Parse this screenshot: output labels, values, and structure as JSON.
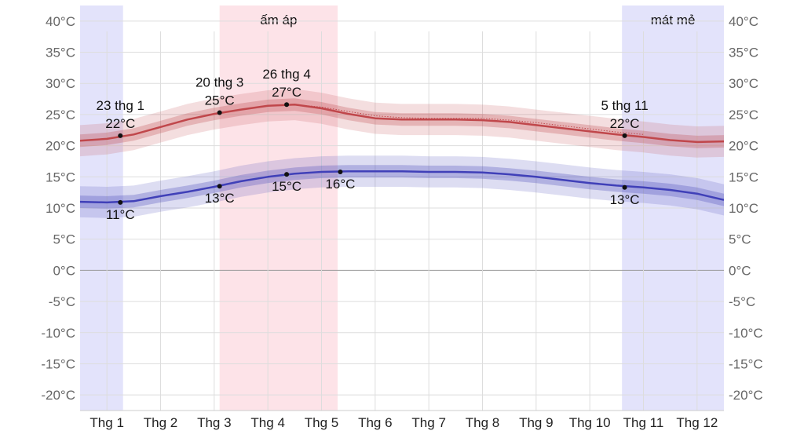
{
  "chart_data": {
    "type": "line",
    "y_unit_suffix": "°C",
    "ylim": [
      -22.5,
      42.5
    ],
    "yticks": [
      -20,
      -15,
      -10,
      -5,
      0,
      5,
      10,
      15,
      20,
      25,
      30,
      35,
      40
    ],
    "ytick_labels": [
      "-20°C",
      "-15°C",
      "-10°C",
      "-5°C",
      "0°C",
      "5°C",
      "10°C",
      "15°C",
      "20°C",
      "25°C",
      "30°C",
      "35°C",
      "40°C"
    ],
    "xlim": [
      0,
      12
    ],
    "categories": [
      "Thg 1",
      "Thg 2",
      "Thg 3",
      "Thg 4",
      "Thg 5",
      "Thg 6",
      "Thg 7",
      "Thg 8",
      "Thg 9",
      "Thg 10",
      "Thg 11",
      "Thg 12"
    ],
    "seasons": [
      {
        "label": "",
        "start": 0,
        "end": 0.8,
        "color": "#e3e3fb"
      },
      {
        "label": "ấm áp",
        "start": 2.6,
        "end": 4.8,
        "color": "#fde3e8"
      },
      {
        "label": "mát mẻ",
        "start": 10.1,
        "end": 12,
        "color": "#e3e3fb"
      }
    ],
    "series": [
      {
        "name": "",
        "color": "#c0474b",
        "x": [
          0,
          0.5,
          1,
          1.5,
          2,
          2.5,
          3,
          3.5,
          4,
          4.5,
          5,
          5.5,
          6,
          6.5,
          7,
          7.5,
          8,
          8.5,
          9,
          9.5,
          10,
          10.5,
          11,
          11.5,
          12
        ],
        "values": [
          20.8,
          21.1,
          21.8,
          23.0,
          24.2,
          25.1,
          25.8,
          26.4,
          26.6,
          26.0,
          25.1,
          24.4,
          24.2,
          24.2,
          24.2,
          24.1,
          23.8,
          23.3,
          22.8,
          22.3,
          21.8,
          21.4,
          20.9,
          20.6,
          20.7
        ],
        "band_inner": 1.0,
        "band_outer": 2.5
      },
      {
        "name": "",
        "color": "#4040b8",
        "x": [
          0,
          0.5,
          1,
          1.5,
          2,
          2.5,
          3,
          3.5,
          4,
          4.5,
          5,
          5.5,
          6,
          6.5,
          7,
          7.5,
          8,
          8.5,
          9,
          9.5,
          10,
          10.5,
          11,
          11.5,
          12
        ],
        "values": [
          11.0,
          10.9,
          11.1,
          11.9,
          12.6,
          13.4,
          14.3,
          15.0,
          15.5,
          15.8,
          15.9,
          15.9,
          15.9,
          15.8,
          15.8,
          15.7,
          15.4,
          15.0,
          14.5,
          14.0,
          13.6,
          13.3,
          12.9,
          12.3,
          11.3
        ],
        "band_inner": 1.0,
        "band_outer": 2.5
      }
    ],
    "dotted_series": {
      "color": "#c0474b",
      "x": [
        4,
        4.5,
        5,
        5.5,
        6,
        6.5,
        7,
        7.5,
        8,
        8.5,
        9,
        9.5,
        10,
        10.5
      ],
      "values": [
        26.6,
        26.2,
        25.5,
        24.8,
        24.5,
        24.4,
        24.4,
        24.4,
        24.1,
        23.7,
        23.2,
        22.7,
        22.2,
        21.8
      ]
    },
    "annotations": [
      {
        "x": 0.75,
        "y": 21.6,
        "lines": [
          "23 thg 1",
          "22°C"
        ],
        "pos": "above"
      },
      {
        "x": 2.6,
        "y": 25.3,
        "lines": [
          "20 thg 3",
          "25°C"
        ],
        "pos": "above"
      },
      {
        "x": 3.85,
        "y": 26.6,
        "lines": [
          "26 thg 4",
          "27°C"
        ],
        "pos": "above"
      },
      {
        "x": 10.15,
        "y": 21.6,
        "lines": [
          "5 thg 11",
          "22°C"
        ],
        "pos": "above"
      },
      {
        "x": 0.75,
        "y": 10.9,
        "lines": [
          "11°C"
        ],
        "pos": "below"
      },
      {
        "x": 2.6,
        "y": 13.5,
        "lines": [
          "13°C"
        ],
        "pos": "below"
      },
      {
        "x": 3.85,
        "y": 15.4,
        "lines": [
          "15°C"
        ],
        "pos": "below"
      },
      {
        "x": 4.85,
        "y": 15.8,
        "lines": [
          "16°C"
        ],
        "pos": "below"
      },
      {
        "x": 10.15,
        "y": 13.3,
        "lines": [
          "13°C"
        ],
        "pos": "below"
      }
    ]
  }
}
